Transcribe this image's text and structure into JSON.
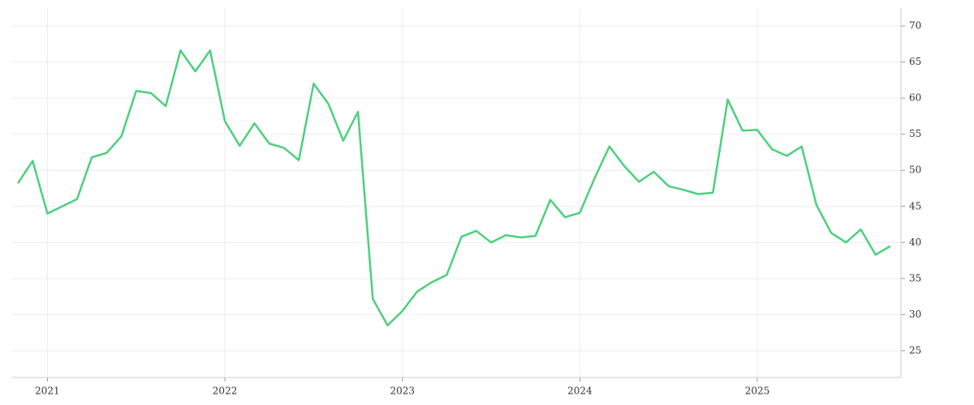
{
  "chart_data": {
    "type": "line",
    "x": [
      "2020-11",
      "2020-12",
      "2021-01",
      "2021-02",
      "2021-03",
      "2021-04",
      "2021-05",
      "2021-06",
      "2021-07",
      "2021-08",
      "2021-09",
      "2021-10",
      "2021-11",
      "2021-12",
      "2022-01",
      "2022-02",
      "2022-03",
      "2022-04",
      "2022-05",
      "2022-06",
      "2022-07",
      "2022-08",
      "2022-09",
      "2022-10",
      "2022-11",
      "2022-12",
      "2023-01",
      "2023-02",
      "2023-03",
      "2023-04",
      "2023-05",
      "2023-06",
      "2023-07",
      "2023-08",
      "2023-09",
      "2023-10",
      "2023-11",
      "2023-12",
      "2024-01",
      "2024-02",
      "2024-03",
      "2024-04",
      "2024-05",
      "2024-06",
      "2024-07",
      "2024-08",
      "2024-09",
      "2024-10",
      "2024-11",
      "2024-12",
      "2025-01",
      "2025-02",
      "2025-03",
      "2025-04",
      "2025-05",
      "2025-06",
      "2025-07",
      "2025-08",
      "2025-09",
      "2025-10"
    ],
    "values": [
      48.2,
      51.3,
      44.0,
      45.0,
      46.0,
      51.8,
      52.4,
      54.7,
      61.0,
      60.7,
      58.9,
      66.6,
      63.7,
      66.6,
      56.8,
      53.4,
      56.5,
      53.7,
      53.1,
      51.4,
      62.0,
      59.2,
      54.1,
      58.1,
      32.2,
      28.5,
      30.5,
      33.2,
      34.5,
      35.5,
      40.8,
      41.6,
      40.0,
      41.0,
      40.7,
      40.9,
      45.9,
      43.5,
      44.1,
      48.9,
      53.3,
      50.6,
      48.4,
      49.8,
      47.8,
      47.3,
      46.7,
      46.9,
      59.8,
      55.5,
      55.6,
      52.9,
      52.0,
      53.3,
      45.2,
      41.3,
      40.0,
      41.8,
      38.3,
      39.5
    ],
    "color": "#4cd07d",
    "xlim": [
      "2020-11",
      "2025-10"
    ],
    "xticks": [
      {
        "value": "2021-01",
        "label": "2021"
      },
      {
        "value": "2022-01",
        "label": "2022"
      },
      {
        "value": "2023-01",
        "label": "2023"
      },
      {
        "value": "2024-01",
        "label": "2024"
      },
      {
        "value": "2025-01",
        "label": "2025"
      }
    ],
    "ylim": [
      22,
      72
    ],
    "yticks": [
      25,
      30,
      35,
      40,
      45,
      50,
      55,
      60,
      65,
      70
    ],
    "grid": true
  }
}
